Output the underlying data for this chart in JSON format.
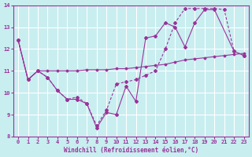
{
  "x": [
    0,
    1,
    2,
    3,
    4,
    5,
    6,
    7,
    8,
    9,
    10,
    11,
    12,
    13,
    14,
    15,
    16,
    17,
    18,
    19,
    20,
    21,
    22,
    23
  ],
  "line_solid": [
    12.4,
    10.6,
    11.0,
    10.7,
    10.1,
    9.7,
    9.7,
    9.5,
    8.4,
    9.1,
    9.0,
    10.3,
    9.6,
    12.5,
    12.6,
    13.2,
    13.0,
    12.1,
    13.2,
    13.8,
    13.8,
    null,
    11.9,
    11.7
  ],
  "line_dashed": [
    12.4,
    10.6,
    11.0,
    10.7,
    10.1,
    9.7,
    9.8,
    9.5,
    8.5,
    9.2,
    10.4,
    10.5,
    10.6,
    10.8,
    11.0,
    12.0,
    13.2,
    13.85,
    13.85,
    13.85,
    13.85,
    13.8,
    11.9,
    11.7
  ],
  "line_flat": [
    12.4,
    10.6,
    11.0,
    11.0,
    11.0,
    11.0,
    11.0,
    11.05,
    11.05,
    11.05,
    11.1,
    11.1,
    11.15,
    11.2,
    11.25,
    11.3,
    11.4,
    11.5,
    11.55,
    11.6,
    11.65,
    11.7,
    11.75,
    11.8
  ],
  "line_color": "#993399",
  "bg_color": "#c8eef0",
  "grid_color": "#b0d8da",
  "xlabel": "Windchill (Refroidissement éolien,°C)",
  "xlim": [
    -0.5,
    23.5
  ],
  "ylim": [
    8,
    14
  ],
  "yticks": [
    8,
    9,
    10,
    11,
    12,
    13,
    14
  ],
  "xticks": [
    0,
    1,
    2,
    3,
    4,
    5,
    6,
    7,
    8,
    9,
    10,
    11,
    12,
    13,
    14,
    15,
    16,
    17,
    18,
    19,
    20,
    21,
    22,
    23
  ]
}
